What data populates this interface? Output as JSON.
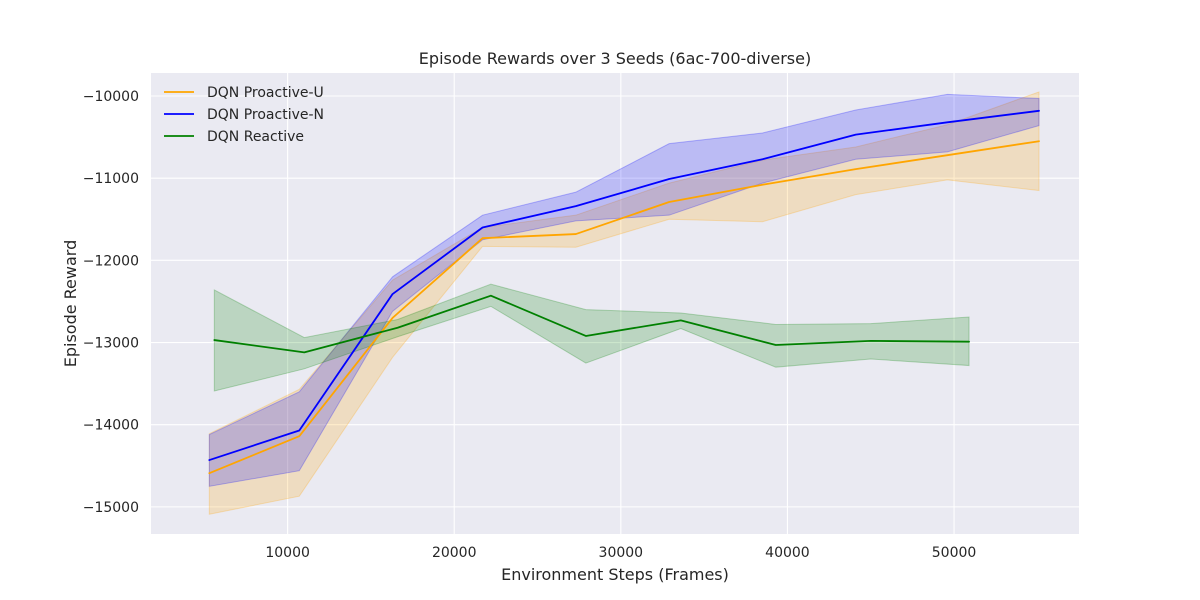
{
  "chart_data": {
    "type": "line",
    "title": "Episode Rewards over 3 Seeds (6ac-700-diverse)",
    "xlabel": "Environment Steps (Frames)",
    "ylabel": "Episode Reward",
    "xlim": [
      1800,
      57500
    ],
    "ylim": [
      -15330,
      -9720
    ],
    "xticks": [
      10000,
      20000,
      30000,
      40000,
      50000
    ],
    "xtick_labels": [
      "10000",
      "20000",
      "30000",
      "40000",
      "50000"
    ],
    "yticks": [
      -15000,
      -14000,
      -13000,
      -12000,
      -11000,
      -10000
    ],
    "ytick_labels": [
      "−15000",
      "−14000",
      "−13000",
      "−12000",
      "−11000",
      "−10000"
    ],
    "grid": true,
    "legend_position": "top-left",
    "series": [
      {
        "name": "DQN Proactive-U",
        "color": "#ffa500",
        "x": [
          5300,
          10700,
          16300,
          21700,
          27300,
          32900,
          38500,
          44100,
          49600,
          55100
        ],
        "y": [
          -14590,
          -14140,
          -12700,
          -11730,
          -11680,
          -11290,
          -11080,
          -10890,
          -10720,
          -10550
        ],
        "upper": [
          -14110,
          -13570,
          -12240,
          -11600,
          -11450,
          -11060,
          -10780,
          -10620,
          -10350,
          -9950
        ],
        "lower": [
          -15090,
          -14870,
          -13180,
          -11830,
          -11840,
          -11500,
          -11530,
          -11200,
          -11020,
          -11150
        ]
      },
      {
        "name": "DQN Proactive-N",
        "color": "#0000ff",
        "x": [
          5300,
          10700,
          16300,
          21700,
          27300,
          32900,
          38500,
          44100,
          49600,
          55100
        ],
        "y": [
          -14430,
          -14070,
          -12410,
          -11600,
          -11340,
          -11010,
          -10770,
          -10470,
          -10320,
          -10180
        ],
        "upper": [
          -14120,
          -13600,
          -12200,
          -11450,
          -11170,
          -10580,
          -10450,
          -10170,
          -9980,
          -10030
        ],
        "lower": [
          -14750,
          -14560,
          -12620,
          -11750,
          -11520,
          -11450,
          -11060,
          -10770,
          -10680,
          -10360
        ]
      },
      {
        "name": "DQN Reactive",
        "color": "#008000",
        "x": [
          5600,
          11000,
          16600,
          22200,
          27900,
          33600,
          39300,
          45000,
          50900
        ],
        "y": [
          -12970,
          -13120,
          -12820,
          -12430,
          -12920,
          -12730,
          -13030,
          -12980,
          -12990
        ],
        "upper": [
          -12360,
          -12940,
          -12720,
          -12290,
          -12600,
          -12640,
          -12780,
          -12770,
          -12690
        ],
        "lower": [
          -13590,
          -13320,
          -12930,
          -12560,
          -13250,
          -12830,
          -13300,
          -13200,
          -13280
        ]
      }
    ]
  }
}
